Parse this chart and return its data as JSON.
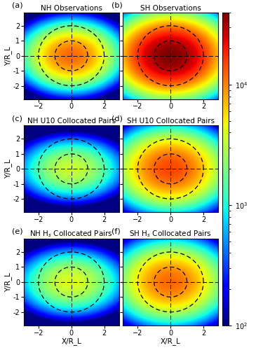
{
  "titles": [
    [
      "(a)",
      "NH Observations"
    ],
    [
      "(b)",
      "SH Observations"
    ],
    [
      "(c)",
      "NH U10 Collocated Pairs"
    ],
    [
      "(d)",
      "SH U10 Collocated Pairs"
    ],
    [
      "(e)",
      "NH H_s Collocated Pairs"
    ],
    [
      "(f)",
      "SH H_s Collocated Pairs"
    ]
  ],
  "xlim": [
    -2.9,
    2.9
  ],
  "ylim": [
    -2.9,
    2.9
  ],
  "xticks": [
    -2,
    0,
    2
  ],
  "yticks": [
    -2,
    -1,
    0,
    1,
    2
  ],
  "xlabel": "X/R_L",
  "ylabel": "Y/R_L",
  "vmin": 100,
  "vmax": 40000,
  "panels": [
    {
      "row": 0,
      "col": 0,
      "sigma_x": 1.35,
      "sigma_y": 1.0,
      "peak": 12000
    },
    {
      "row": 0,
      "col": 1,
      "sigma_x": 1.55,
      "sigma_y": 1.2,
      "peak": 40000
    },
    {
      "row": 1,
      "col": 0,
      "sigma_x": 1.5,
      "sigma_y": 0.95,
      "peak": 3500
    },
    {
      "row": 1,
      "col": 1,
      "sigma_x": 1.55,
      "sigma_y": 1.2,
      "peak": 15000
    },
    {
      "row": 2,
      "col": 0,
      "sigma_x": 1.5,
      "sigma_y": 1.0,
      "peak": 4000
    },
    {
      "row": 2,
      "col": 1,
      "sigma_x": 1.55,
      "sigma_y": 1.2,
      "peak": 12000
    }
  ],
  "dashed_circles": [
    1.0,
    2.0
  ],
  "background_color": "#ffffff"
}
